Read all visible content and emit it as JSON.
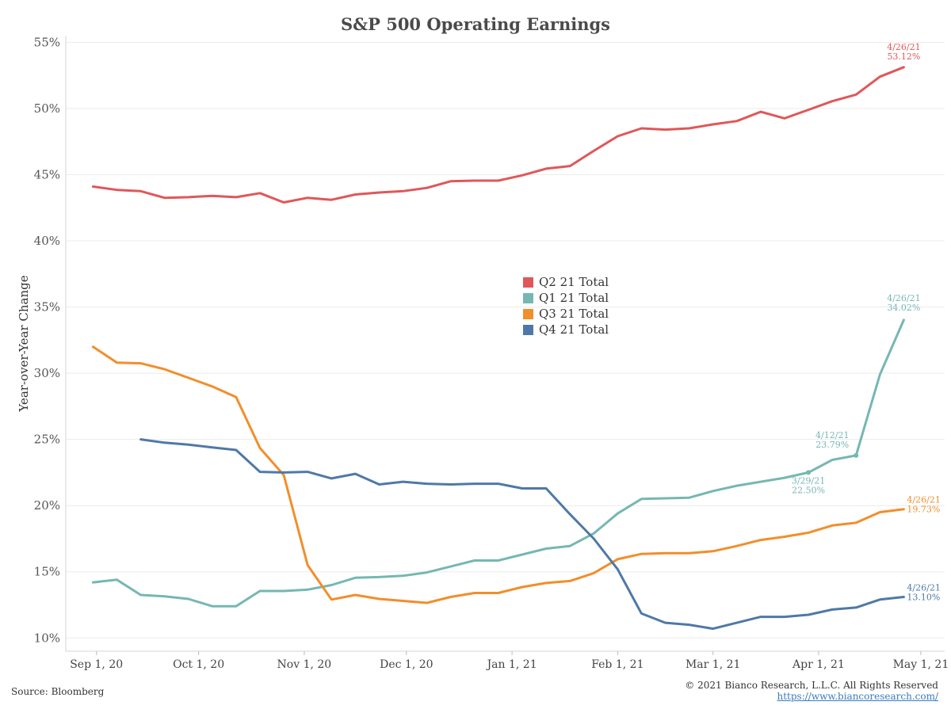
{
  "footer": {
    "source": "Source: Bloomberg",
    "copyright": "© 2021 Bianco Research, L.L.C. All Rights Reserved",
    "link": "https://www.biancoresearch.com/"
  },
  "chart_data": {
    "type": "line",
    "title": "S&P 500 Operating Earnings",
    "ylabel": "Year-over-Year Change",
    "xlabel": "",
    "ylim": [
      9,
      55.5
    ],
    "xlim": [
      "2020-08-23",
      "2021-05-08"
    ],
    "yticks": [
      10,
      15,
      20,
      25,
      30,
      35,
      40,
      45,
      50,
      55
    ],
    "ytick_labels": [
      "10%",
      "15%",
      "20%",
      "25%",
      "30%",
      "35%",
      "40%",
      "45%",
      "50%",
      "55%"
    ],
    "xticks": [
      "2020-09-01",
      "2020-10-01",
      "2020-11-01",
      "2020-12-01",
      "2021-01-01",
      "2021-02-01",
      "2021-03-01",
      "2021-04-01",
      "2021-05-01"
    ],
    "xtick_labels": [
      "Sep 1, 20",
      "Oct 1, 20",
      "Nov 1, 20",
      "Dec 1, 20",
      "Jan 1, 21",
      "Feb 1, 21",
      "Mar 1, 21",
      "Apr 1, 21",
      "May 1, 21"
    ],
    "grid": "horizontal",
    "legend_position": "center",
    "series": [
      {
        "name": "Q2 21 Total",
        "color": "#e05759",
        "points": [
          [
            "2020-08-31",
            44.1
          ],
          [
            "2020-09-07",
            43.85
          ],
          [
            "2020-09-14",
            43.75
          ],
          [
            "2020-09-21",
            43.25
          ],
          [
            "2020-09-28",
            43.3
          ],
          [
            "2020-10-05",
            43.4
          ],
          [
            "2020-10-12",
            43.3
          ],
          [
            "2020-10-19",
            43.6
          ],
          [
            "2020-10-26",
            42.9
          ],
          [
            "2020-11-02",
            43.25
          ],
          [
            "2020-11-09",
            43.1
          ],
          [
            "2020-11-16",
            43.5
          ],
          [
            "2020-11-23",
            43.65
          ],
          [
            "2020-11-30",
            43.75
          ],
          [
            "2020-12-07",
            44.0
          ],
          [
            "2020-12-14",
            44.5
          ],
          [
            "2020-12-21",
            44.55
          ],
          [
            "2020-12-28",
            44.55
          ],
          [
            "2021-01-04",
            44.95
          ],
          [
            "2021-01-11",
            45.45
          ],
          [
            "2021-01-18",
            45.65
          ],
          [
            "2021-01-25",
            46.8
          ],
          [
            "2021-02-01",
            47.9
          ],
          [
            "2021-02-08",
            48.5
          ],
          [
            "2021-02-15",
            48.4
          ],
          [
            "2021-02-22",
            48.5
          ],
          [
            "2021-03-01",
            48.8
          ],
          [
            "2021-03-08",
            49.05
          ],
          [
            "2021-03-15",
            49.75
          ],
          [
            "2021-03-22",
            49.25
          ],
          [
            "2021-03-29",
            49.9
          ],
          [
            "2021-04-05",
            50.55
          ],
          [
            "2021-04-12",
            51.05
          ],
          [
            "2021-04-19",
            52.4
          ],
          [
            "2021-04-26",
            53.12
          ]
        ],
        "annotations": [
          {
            "date": "2021-04-26",
            "date_label": "4/26/21",
            "value_label": "53.12%"
          }
        ]
      },
      {
        "name": "Q1 21 Total",
        "color": "#76b7b2",
        "points": [
          [
            "2020-08-31",
            14.2
          ],
          [
            "2020-09-07",
            14.4
          ],
          [
            "2020-09-14",
            13.25
          ],
          [
            "2020-09-21",
            13.15
          ],
          [
            "2020-09-28",
            12.95
          ],
          [
            "2020-10-05",
            12.4
          ],
          [
            "2020-10-12",
            12.4
          ],
          [
            "2020-10-19",
            13.55
          ],
          [
            "2020-10-26",
            13.55
          ],
          [
            "2020-11-02",
            13.65
          ],
          [
            "2020-11-09",
            14.0
          ],
          [
            "2020-11-16",
            14.55
          ],
          [
            "2020-11-23",
            14.6
          ],
          [
            "2020-11-30",
            14.7
          ],
          [
            "2020-12-07",
            14.95
          ],
          [
            "2020-12-14",
            15.4
          ],
          [
            "2020-12-21",
            15.85
          ],
          [
            "2020-12-28",
            15.85
          ],
          [
            "2021-01-04",
            16.3
          ],
          [
            "2021-01-11",
            16.75
          ],
          [
            "2021-01-18",
            16.95
          ],
          [
            "2021-01-25",
            17.9
          ],
          [
            "2021-02-01",
            19.4
          ],
          [
            "2021-02-08",
            20.5
          ],
          [
            "2021-02-15",
            20.55
          ],
          [
            "2021-02-22",
            20.6
          ],
          [
            "2021-03-01",
            21.1
          ],
          [
            "2021-03-08",
            21.5
          ],
          [
            "2021-03-15",
            21.8
          ],
          [
            "2021-03-22",
            22.1
          ],
          [
            "2021-03-29",
            22.5
          ],
          [
            "2021-04-05",
            23.45
          ],
          [
            "2021-04-12",
            23.79
          ],
          [
            "2021-04-19",
            29.9
          ],
          [
            "2021-04-26",
            34.02
          ]
        ],
        "annotations": [
          {
            "date": "2021-03-29",
            "date_label": "3/29/21",
            "value_label": "22.50%",
            "marker": true
          },
          {
            "date": "2021-04-12",
            "date_label": "4/12/21",
            "value_label": "23.79%",
            "marker": true
          },
          {
            "date": "2021-04-26",
            "date_label": "4/26/21",
            "value_label": "34.02%"
          }
        ]
      },
      {
        "name": "Q3 21 Total",
        "color": "#f28e2b",
        "points": [
          [
            "2020-08-31",
            32.0
          ],
          [
            "2020-09-07",
            30.8
          ],
          [
            "2020-09-14",
            30.75
          ],
          [
            "2020-09-21",
            30.3
          ],
          [
            "2020-09-28",
            29.65
          ],
          [
            "2020-10-05",
            29.0
          ],
          [
            "2020-10-12",
            28.2
          ],
          [
            "2020-10-19",
            24.35
          ],
          [
            "2020-10-26",
            22.3
          ],
          [
            "2020-11-02",
            15.5
          ],
          [
            "2020-11-09",
            12.9
          ],
          [
            "2020-11-16",
            13.25
          ],
          [
            "2020-11-23",
            12.95
          ],
          [
            "2020-11-30",
            12.8
          ],
          [
            "2020-12-07",
            12.65
          ],
          [
            "2020-12-14",
            13.1
          ],
          [
            "2020-12-21",
            13.4
          ],
          [
            "2020-12-28",
            13.4
          ],
          [
            "2021-01-04",
            13.85
          ],
          [
            "2021-01-11",
            14.15
          ],
          [
            "2021-01-18",
            14.3
          ],
          [
            "2021-01-25",
            14.9
          ],
          [
            "2021-02-01",
            15.95
          ],
          [
            "2021-02-08",
            16.35
          ],
          [
            "2021-02-15",
            16.4
          ],
          [
            "2021-02-22",
            16.4
          ],
          [
            "2021-03-01",
            16.55
          ],
          [
            "2021-03-08",
            16.95
          ],
          [
            "2021-03-15",
            17.4
          ],
          [
            "2021-03-22",
            17.65
          ],
          [
            "2021-03-29",
            17.95
          ],
          [
            "2021-04-05",
            18.5
          ],
          [
            "2021-04-12",
            18.7
          ],
          [
            "2021-04-19",
            19.5
          ],
          [
            "2021-04-26",
            19.73
          ]
        ],
        "annotations": [
          {
            "date": "2021-04-26",
            "date_label": "4/26/21",
            "value_label": "19.73%"
          }
        ]
      },
      {
        "name": "Q4 21 Total",
        "color": "#4e79a7",
        "points": [
          [
            "2020-09-14",
            25.0
          ],
          [
            "2020-09-21",
            24.75
          ],
          [
            "2020-09-28",
            24.6
          ],
          [
            "2020-10-05",
            24.4
          ],
          [
            "2020-10-12",
            24.2
          ],
          [
            "2020-10-19",
            22.55
          ],
          [
            "2020-10-26",
            22.5
          ],
          [
            "2020-11-02",
            22.55
          ],
          [
            "2020-11-09",
            22.05
          ],
          [
            "2020-11-16",
            22.4
          ],
          [
            "2020-11-23",
            21.6
          ],
          [
            "2020-11-30",
            21.8
          ],
          [
            "2020-12-07",
            21.65
          ],
          [
            "2020-12-14",
            21.6
          ],
          [
            "2020-12-21",
            21.65
          ],
          [
            "2020-12-28",
            21.65
          ],
          [
            "2021-01-04",
            21.3
          ],
          [
            "2021-01-11",
            21.3
          ],
          [
            "2021-01-18",
            19.35
          ],
          [
            "2021-01-25",
            17.5
          ],
          [
            "2021-02-01",
            15.2
          ],
          [
            "2021-02-08",
            11.85
          ],
          [
            "2021-02-15",
            11.15
          ],
          [
            "2021-02-22",
            11.0
          ],
          [
            "2021-03-01",
            10.7
          ],
          [
            "2021-03-08",
            11.15
          ],
          [
            "2021-03-15",
            11.6
          ],
          [
            "2021-03-22",
            11.6
          ],
          [
            "2021-03-29",
            11.75
          ],
          [
            "2021-04-05",
            12.15
          ],
          [
            "2021-04-12",
            12.3
          ],
          [
            "2021-04-19",
            12.9
          ],
          [
            "2021-04-26",
            13.1
          ]
        ],
        "annotations": [
          {
            "date": "2021-04-26",
            "date_label": "4/26/21",
            "value_label": "13.10%"
          }
        ]
      }
    ]
  }
}
